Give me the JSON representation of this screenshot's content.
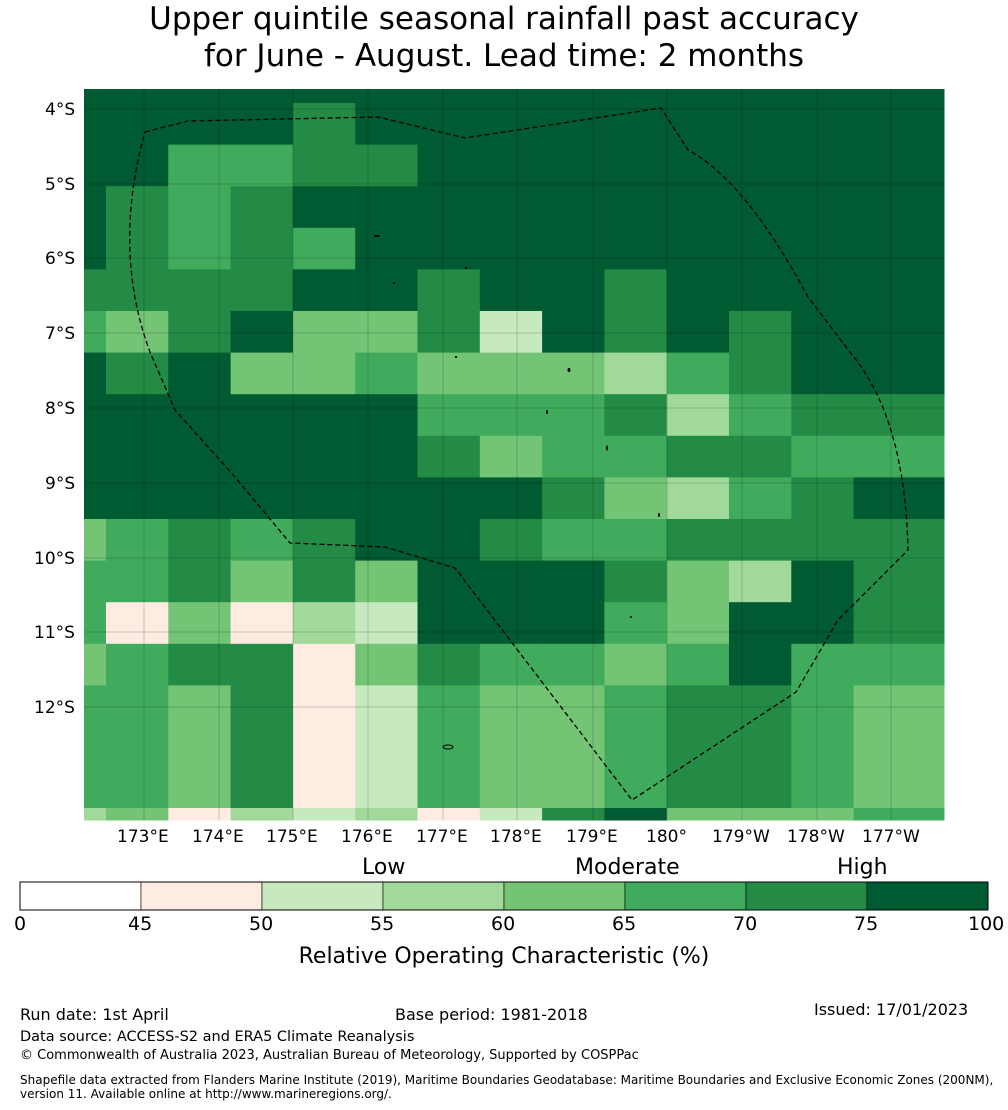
{
  "title": {
    "line1": "Upper quintile seasonal rainfall past accuracy",
    "line2": "for June - August. Lead time: 2 months"
  },
  "map": {
    "lat_labels": [
      "4°S",
      "5°S",
      "6°S",
      "7°S",
      "8°S",
      "9°S",
      "10°S",
      "11°S",
      "12°S"
    ],
    "lon_labels": [
      "173°E",
      "174°E",
      "175°E",
      "176°E",
      "177°E",
      "178°E",
      "179°E",
      "180°",
      "179°W",
      "178°W",
      "177°W"
    ],
    "grid_values": [
      [
        75,
        75,
        75,
        75,
        75,
        75,
        75,
        75,
        75,
        75,
        75,
        75,
        75,
        75
      ],
      [
        75,
        75,
        75,
        75,
        70,
        75,
        75,
        75,
        75,
        75,
        75,
        75,
        75,
        75
      ],
      [
        75,
        75,
        65,
        65,
        70,
        70,
        75,
        75,
        75,
        75,
        75,
        75,
        75,
        75
      ],
      [
        75,
        70,
        65,
        70,
        75,
        75,
        75,
        75,
        75,
        75,
        75,
        75,
        75,
        75
      ],
      [
        75,
        70,
        65,
        70,
        65,
        75,
        75,
        75,
        75,
        75,
        75,
        75,
        75,
        75
      ],
      [
        70,
        70,
        70,
        70,
        75,
        75,
        70,
        75,
        75,
        70,
        75,
        75,
        75,
        75
      ],
      [
        65,
        60,
        70,
        75,
        60,
        60,
        70,
        50,
        75,
        70,
        75,
        70,
        75,
        75
      ],
      [
        75,
        70,
        75,
        60,
        60,
        65,
        60,
        60,
        60,
        55,
        65,
        70,
        75,
        75
      ],
      [
        75,
        75,
        75,
        75,
        75,
        75,
        65,
        65,
        65,
        70,
        55,
        65,
        70,
        70
      ],
      [
        75,
        75,
        75,
        75,
        75,
        75,
        70,
        60,
        65,
        65,
        70,
        70,
        65,
        65
      ],
      [
        75,
        75,
        75,
        75,
        75,
        75,
        75,
        75,
        70,
        60,
        55,
        65,
        70,
        75
      ],
      [
        60,
        65,
        70,
        65,
        70,
        75,
        75,
        70,
        65,
        65,
        70,
        70,
        70,
        70
      ],
      [
        65,
        65,
        70,
        60,
        70,
        60,
        75,
        75,
        75,
        70,
        60,
        55,
        75,
        70
      ],
      [
        65,
        45,
        60,
        45,
        55,
        50,
        75,
        75,
        75,
        65,
        60,
        75,
        75,
        70
      ],
      [
        60,
        65,
        70,
        70,
        45,
        60,
        70,
        65,
        65,
        60,
        65,
        75,
        65,
        65
      ],
      [
        65,
        65,
        60,
        70,
        45,
        50,
        65,
        60,
        60,
        65,
        70,
        70,
        65,
        60
      ],
      [
        55,
        60,
        45,
        55,
        50,
        55,
        45,
        50,
        70,
        75,
        60,
        60,
        60,
        65
      ]
    ],
    "colors": {
      "c0": "#ffffff",
      "c45": "#feebe2",
      "c50": "#c7e9c0",
      "c55": "#a1d99b",
      "c60": "#74c476",
      "c65": "#41ab5d",
      "c70": "#238b45",
      "c75": "#005a32"
    }
  },
  "colorbar": {
    "categories": [
      "Low",
      "Moderate",
      "High"
    ],
    "tick_labels": [
      "0",
      "45",
      "50",
      "55",
      "60",
      "65",
      "70",
      "75",
      "100"
    ],
    "xlabel": "Relative Operating Characteristic (%)"
  },
  "footer": {
    "run_date": "Run date: 1st April",
    "base_period": "Base period: 1981-2018",
    "issued": "Issued: 17/01/2023",
    "data_source": "Data source: ACCESS-S2 and ERA5 Climate Reanalysis",
    "copyright": "© Commonwealth of Australia 2023, Australian Bureau of Meteorology, Supported by COSPPac",
    "shapefile": "Shapefile data extracted from Flanders Marine Institute (2019), Maritime Boundaries Geodatabase: Maritime Boundaries and Exclusive Economic Zones (200NM), version 11. Available online at http://www.marineregions.org/."
  }
}
